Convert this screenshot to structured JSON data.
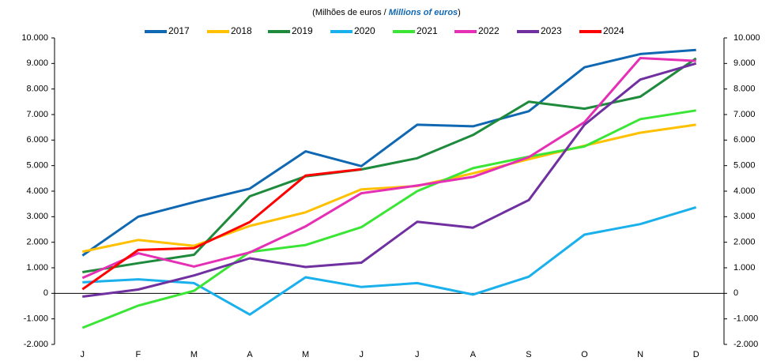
{
  "chart_data": {
    "type": "line",
    "subtitle": [
      "(Milhões de euros / ",
      "Millions of euros",
      ")"
    ],
    "categories": [
      "J",
      "F",
      "M",
      "A",
      "M",
      "J",
      "J",
      "A",
      "S",
      "O",
      "N",
      "D"
    ],
    "series": [
      {
        "name": "2017",
        "color": "#1068B2",
        "values": [
          1480,
          3000,
          3570,
          4100,
          5560,
          4980,
          6600,
          6540,
          7130,
          8850,
          9370,
          9530
        ]
      },
      {
        "name": "2018",
        "color": "#FFC000",
        "values": [
          1630,
          2090,
          1860,
          2640,
          3170,
          4070,
          4200,
          4700,
          5250,
          5780,
          6290,
          6600
        ]
      },
      {
        "name": "2019",
        "color": "#1E8A3C",
        "values": [
          830,
          1180,
          1510,
          3800,
          4580,
          4850,
          5290,
          6200,
          7500,
          7230,
          7700,
          9200
        ]
      },
      {
        "name": "2020",
        "color": "#1AB0EC",
        "values": [
          430,
          550,
          400,
          -830,
          630,
          250,
          400,
          -50,
          650,
          2300,
          2710,
          3370
        ]
      },
      {
        "name": "2021",
        "color": "#3BE535",
        "values": [
          -1350,
          -480,
          100,
          1620,
          1890,
          2590,
          4000,
          4900,
          5350,
          5750,
          6820,
          7160
        ]
      },
      {
        "name": "2022",
        "color": "#E52FB5",
        "values": [
          600,
          1570,
          1050,
          1600,
          2620,
          3920,
          4220,
          4560,
          5330,
          6700,
          9210,
          9100
        ]
      },
      {
        "name": "2023",
        "color": "#7030A0",
        "values": [
          -130,
          150,
          700,
          1370,
          1030,
          1200,
          2800,
          2570,
          3650,
          6600,
          8370,
          9000
        ]
      },
      {
        "name": "2024",
        "color": "#FF0000",
        "values": [
          160,
          1700,
          1770,
          2790,
          4610,
          4860,
          null,
          null,
          null,
          null,
          null,
          null
        ]
      }
    ],
    "ylim": [
      -2000,
      10000
    ],
    "yticks": [
      {
        "value": -2000,
        "label": "-2.000"
      },
      {
        "value": -1000,
        "label": "-1.000"
      },
      0,
      {
        "value": 1000,
        "label": "1.000"
      },
      {
        "value": 2000,
        "label": "2.000"
      },
      {
        "value": 3000,
        "label": "3.000"
      },
      {
        "value": 4000,
        "label": "4.000"
      },
      {
        "value": 5000,
        "label": "5.000"
      },
      {
        "value": 6000,
        "label": "6.000"
      },
      {
        "value": 7000,
        "label": "7.000"
      },
      {
        "value": 8000,
        "label": "8.000"
      },
      {
        "value": 9000,
        "label": "9.000"
      },
      {
        "value": 10000,
        "label": "10.000"
      }
    ],
    "y2lim": [
      -2000,
      10000
    ],
    "y2ticks": [
      {
        "value": -2000,
        "label": "-2.000"
      },
      {
        "value": -1000,
        "label": "-1.000"
      },
      0,
      {
        "value": 1000,
        "label": "1.000"
      },
      {
        "value": 2000,
        "label": "2.000"
      },
      {
        "value": 3000,
        "label": "3.000"
      },
      {
        "value": 4000,
        "label": "4.000"
      },
      {
        "value": 5000,
        "label": "5.000"
      },
      {
        "value": 6000,
        "label": "6.000"
      },
      {
        "value": 7000,
        "label": "7.000"
      },
      {
        "value": 8000,
        "label": "8.000"
      },
      {
        "value": 9000,
        "label": "9.000"
      },
      {
        "value": 10000,
        "label": "10.000"
      }
    ]
  }
}
